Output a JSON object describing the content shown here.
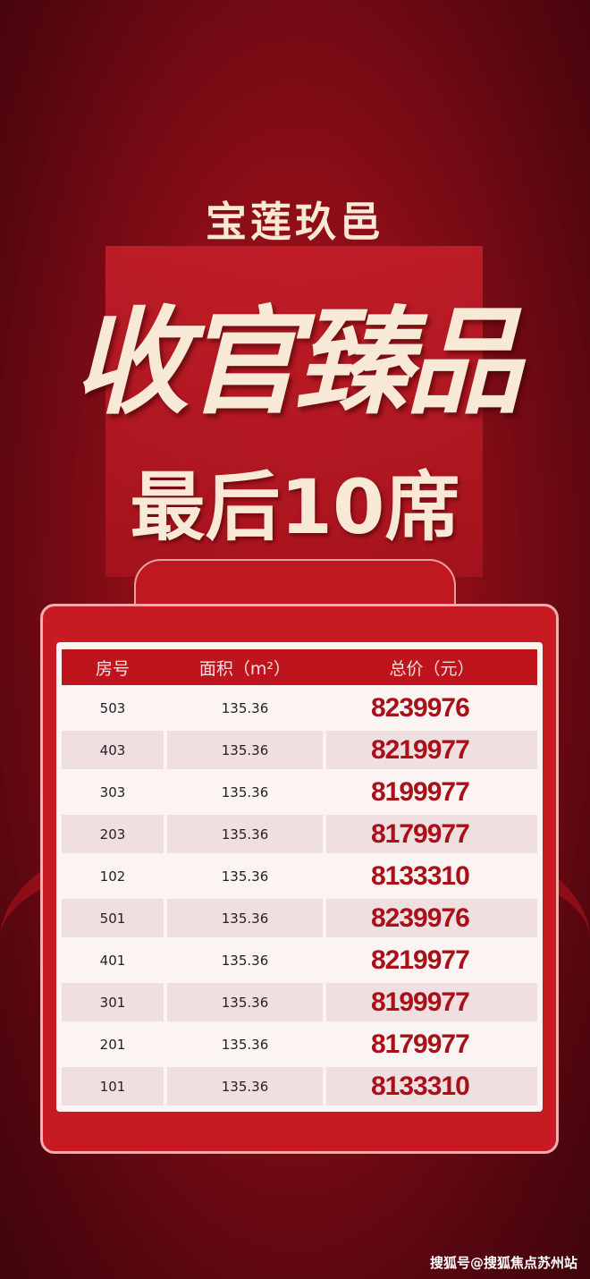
{
  "project": "宝莲玖邑",
  "headline": "收官臻品",
  "subheadline": "最后10席",
  "table": {
    "headers": [
      "房号",
      "面积（m²）",
      "总价（元）"
    ],
    "rows": [
      [
        "503",
        "135.36",
        "8239976"
      ],
      [
        "403",
        "135.36",
        "8219977"
      ],
      [
        "303",
        "135.36",
        "8199977"
      ],
      [
        "203",
        "135.36",
        "8179977"
      ],
      [
        "102",
        "135.36",
        "8133310"
      ],
      [
        "501",
        "135.36",
        "8239976"
      ],
      [
        "401",
        "135.36",
        "8219977"
      ],
      [
        "301",
        "135.36",
        "8199977"
      ],
      [
        "201",
        "135.36",
        "8179977"
      ],
      [
        "101",
        "135.36",
        "8133310"
      ]
    ]
  },
  "watermark": "搜狐号@搜狐焦点苏州站"
}
